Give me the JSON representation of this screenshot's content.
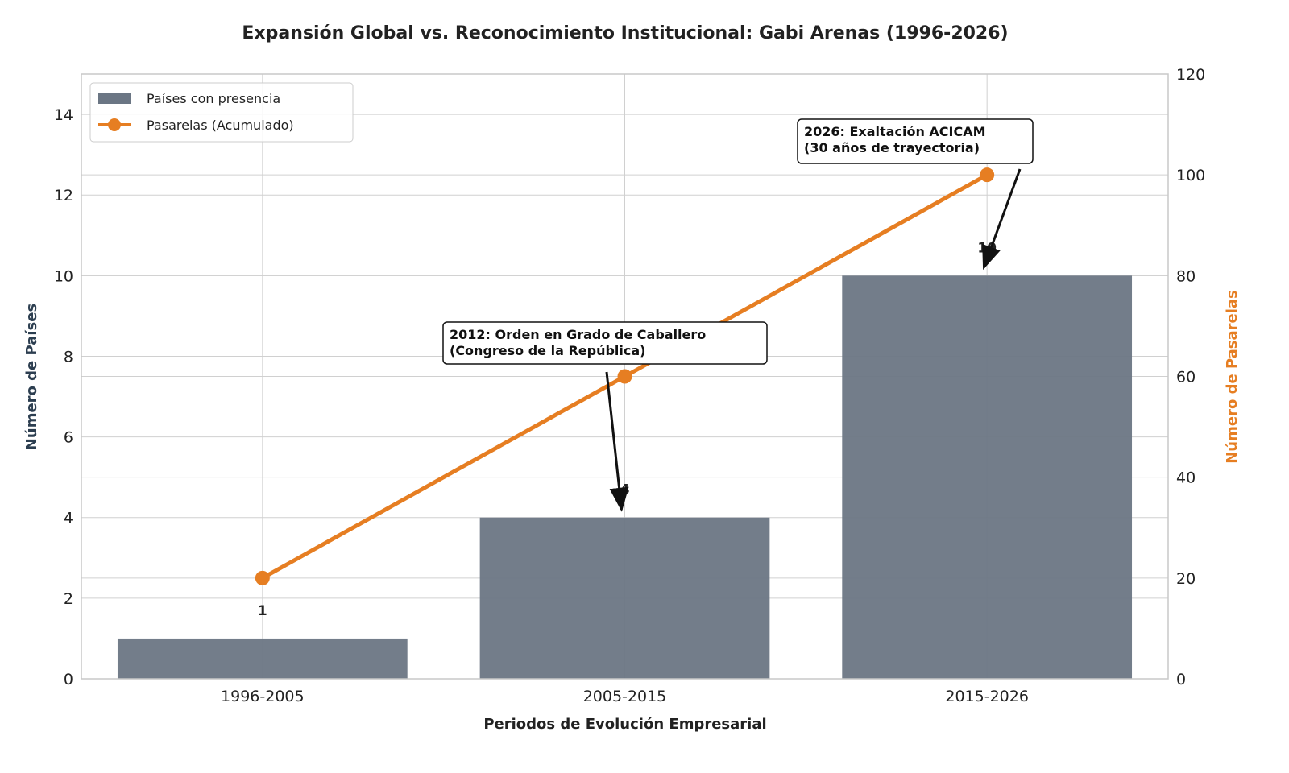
{
  "chart_data": {
    "type": "bar",
    "title": "Expansión Global vs. Reconocimiento Institucional: Gabi Arenas (1996-2026)",
    "xlabel": "Periodos de Evolución Empresarial",
    "ylabel": "Número de Países",
    "ylabel_right": "Número de Pasarelas",
    "categories": [
      "1996-2005",
      "2005-2015",
      "2015-2026"
    ],
    "ylim": [
      0,
      15
    ],
    "ylim_right": [
      0,
      120
    ],
    "yticks": [
      0,
      2,
      4,
      6,
      8,
      10,
      12,
      14
    ],
    "yticks_right": [
      0,
      20,
      40,
      60,
      80,
      100,
      120
    ],
    "grid": true,
    "legend_position": "top-left",
    "series": [
      {
        "name": "Países con presencia",
        "type": "bar",
        "axis": "left",
        "values": [
          1,
          4,
          10
        ],
        "labels": [
          "1",
          "4",
          "10"
        ],
        "color": "#6b7684"
      },
      {
        "name": "Pasarelas (Acumulado)",
        "type": "line",
        "axis": "right",
        "values": [
          20,
          60,
          100
        ],
        "color": "#e67e22"
      }
    ],
    "annotations": [
      {
        "text_lines": [
          "2012: Orden en Grado de Caballero",
          "(Congreso de la República)"
        ],
        "category": "2005-2015",
        "points_to_value": 4
      },
      {
        "text_lines": [
          "2026: Exaltación ACICAM",
          "(30 años de trayectoria)"
        ],
        "category": "2015-2026",
        "points_to_value": 10
      }
    ]
  }
}
